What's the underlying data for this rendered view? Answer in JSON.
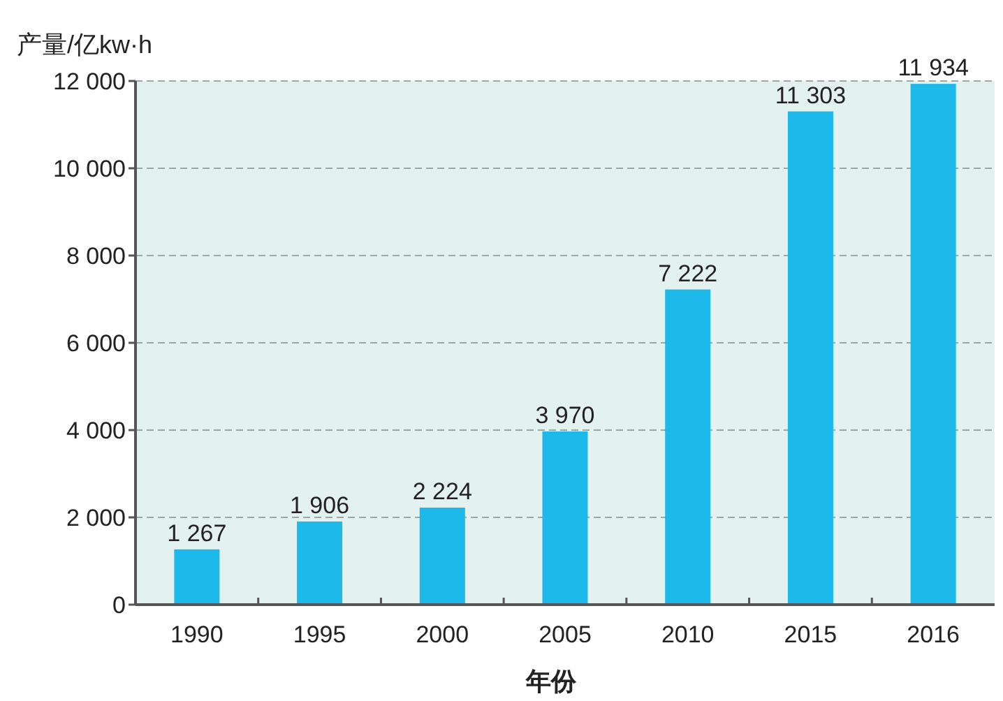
{
  "chart_data": {
    "type": "bar",
    "ylabel": "产量/亿kw·h",
    "xlabel": "年份",
    "categories": [
      "1990",
      "1995",
      "2000",
      "2005",
      "2010",
      "2015",
      "2016"
    ],
    "values": [
      1267,
      1906,
      2224,
      3970,
      7222,
      11303,
      11934
    ],
    "value_labels": [
      "1 267",
      "1 906",
      "2 224",
      "3 970",
      "7 222",
      "11 303",
      "11 934"
    ],
    "color": "#1cb9ea",
    "ylim": [
      0,
      12000
    ],
    "yticks": [
      {
        "value": 0,
        "label": "0"
      },
      {
        "value": 2000,
        "label": "2 000"
      },
      {
        "value": 4000,
        "label": "4 000"
      },
      {
        "value": 6000,
        "label": "6 000"
      },
      {
        "value": 8000,
        "label": "8 000"
      },
      {
        "value": 10000,
        "label": "10 000"
      },
      {
        "value": 12000,
        "label": "12 000"
      }
    ],
    "grid": "y"
  }
}
